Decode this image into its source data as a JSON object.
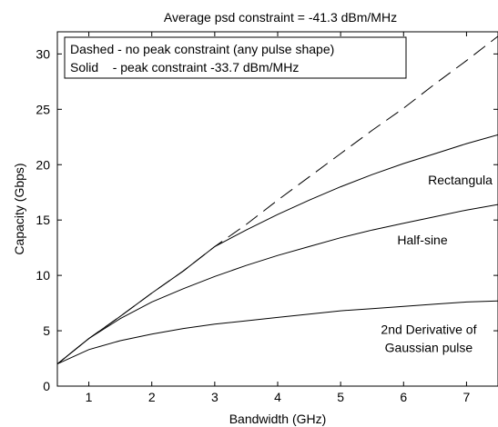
{
  "chart_data": {
    "type": "line",
    "title": "Average psd constraint = -41.3 dBm/MHz",
    "xlabel": "Bandwidth (GHz)",
    "ylabel": "Capacity (Gbps)",
    "xlim": [
      0.5,
      7.5
    ],
    "ylim": [
      0,
      32
    ],
    "xticks": [
      1,
      2,
      3,
      4,
      5,
      6,
      7
    ],
    "yticks": [
      0,
      5,
      10,
      15,
      20,
      25,
      30
    ],
    "grid": false,
    "legend": {
      "position": "top-left",
      "entries": [
        "Dashed - no peak constraint (any pulse shape)",
        "Solid    - peak constraint -33.7 dBm/MHz"
      ]
    },
    "series": [
      {
        "style": "dashed",
        "x": [
          0.5,
          1.0,
          1.5,
          2.0,
          2.5,
          3.0,
          3.5,
          4.0,
          4.5,
          5.0,
          5.5,
          6.0,
          6.5,
          7.0,
          7.5
        ],
        "values": [
          2.0,
          4.3,
          6.3,
          8.4,
          10.4,
          12.6,
          14.6,
          16.8,
          18.9,
          21.0,
          23.1,
          25.1,
          27.3,
          29.4,
          31.6
        ]
      },
      {
        "name": "Rectangular",
        "style": "solid",
        "x": [
          0.5,
          1.0,
          1.5,
          2.0,
          2.5,
          3.0,
          3.5,
          4.0,
          4.5,
          5.0,
          5.5,
          6.0,
          6.5,
          7.0,
          7.5
        ],
        "values": [
          2.0,
          4.3,
          6.3,
          8.4,
          10.4,
          12.6,
          14.1,
          15.5,
          16.8,
          18.0,
          19.1,
          20.1,
          21.0,
          21.9,
          22.7
        ]
      },
      {
        "name": "Half-sine",
        "style": "solid",
        "x": [
          0.5,
          1.0,
          1.5,
          2.0,
          2.5,
          3.0,
          3.5,
          4.0,
          4.5,
          5.0,
          5.5,
          6.0,
          6.5,
          7.0,
          7.5
        ],
        "values": [
          2.0,
          4.3,
          6.1,
          7.6,
          8.8,
          9.9,
          10.9,
          11.8,
          12.6,
          13.4,
          14.1,
          14.7,
          15.3,
          15.9,
          16.4
        ]
      },
      {
        "name": "2nd Derivative of Gaussian pulse",
        "style": "solid",
        "x": [
          0.5,
          1.0,
          1.5,
          2.0,
          2.5,
          3.0,
          3.5,
          4.0,
          4.5,
          5.0,
          5.5,
          6.0,
          6.5,
          7.0,
          7.5
        ],
        "values": [
          2.0,
          3.3,
          4.1,
          4.7,
          5.2,
          5.6,
          5.9,
          6.2,
          6.5,
          6.8,
          7.0,
          7.2,
          7.4,
          7.6,
          7.7
        ]
      }
    ],
    "annotations": [
      {
        "lines": [
          "Rectangula"
        ],
        "x": 6.9,
        "y": 18.2
      },
      {
        "lines": [
          "Half-sine"
        ],
        "x": 6.3,
        "y": 12.8
      },
      {
        "lines": [
          "2nd Derivative of",
          "Gaussian pulse"
        ],
        "x": 6.4,
        "y": 4.7
      }
    ]
  }
}
